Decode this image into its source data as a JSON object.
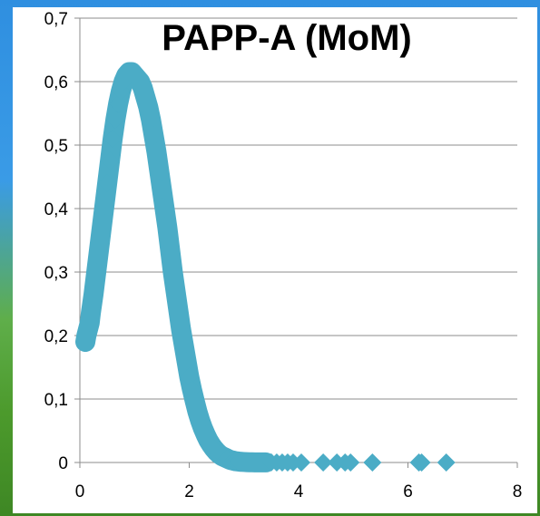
{
  "chart_data": {
    "type": "scatter",
    "title": "PAPP-A (MoM)",
    "xlabel": "",
    "ylabel": "",
    "xlim": [
      0,
      8
    ],
    "ylim": [
      0,
      0.7
    ],
    "x_ticks": [
      "0",
      "2",
      "4",
      "6",
      "8"
    ],
    "y_ticks": [
      "0",
      "0,1",
      "0,2",
      "0,3",
      "0,4",
      "0,5",
      "0,6",
      "0,7"
    ],
    "grid": "horizontal",
    "legend": "none",
    "marker": "diamond",
    "color": "#4bacc6",
    "series": [
      {
        "x": [
          0.1,
          0.12,
          0.15,
          0.18,
          0.2,
          0.25,
          0.3,
          0.35,
          0.4,
          0.45,
          0.5,
          0.55,
          0.6,
          0.65,
          0.7,
          0.75,
          0.8,
          0.85,
          0.9,
          0.95,
          1.0,
          1.05,
          1.1,
          1.15,
          1.2,
          1.25,
          1.3,
          1.35,
          1.4,
          1.45,
          1.5,
          1.55,
          1.6,
          1.65,
          1.7,
          1.75,
          1.8,
          1.85,
          1.9,
          1.95,
          2.0,
          2.05,
          2.1,
          2.15,
          2.2,
          2.25,
          2.3,
          2.35,
          2.4,
          2.45,
          2.5,
          2.55,
          2.6,
          2.65,
          2.7,
          2.75,
          2.8,
          2.85,
          2.9,
          2.95,
          3.0,
          3.05,
          3.1,
          3.15,
          3.2,
          3.25,
          3.3,
          3.35,
          3.4,
          3.5,
          3.6,
          3.7,
          3.8,
          3.9,
          4.05,
          4.45,
          4.7,
          4.85,
          4.95,
          5.35,
          6.2,
          6.25,
          6.7
        ],
        "y": [
          0.19,
          0.2,
          0.21,
          0.22,
          0.235,
          0.265,
          0.3,
          0.335,
          0.37,
          0.405,
          0.44,
          0.475,
          0.51,
          0.54,
          0.565,
          0.585,
          0.6,
          0.61,
          0.615,
          0.615,
          0.61,
          0.605,
          0.6,
          0.59,
          0.575,
          0.56,
          0.54,
          0.515,
          0.49,
          0.46,
          0.43,
          0.4,
          0.37,
          0.335,
          0.3,
          0.27,
          0.24,
          0.21,
          0.185,
          0.16,
          0.135,
          0.115,
          0.097,
          0.08,
          0.066,
          0.054,
          0.044,
          0.035,
          0.028,
          0.022,
          0.017,
          0.013,
          0.01,
          0.008,
          0.006,
          0.004,
          0.003,
          0.002,
          0.0015,
          0.001,
          0.0008,
          0.0006,
          0.0004,
          0.0003,
          0.0002,
          0.0002,
          0.0001,
          0.0001,
          0.0001,
          0.0001,
          0.0,
          0.0,
          0.0,
          0.0,
          0.0,
          0.0,
          0.0,
          0.0,
          0.0,
          0.0,
          0.0,
          0.0,
          0.0
        ]
      }
    ]
  }
}
